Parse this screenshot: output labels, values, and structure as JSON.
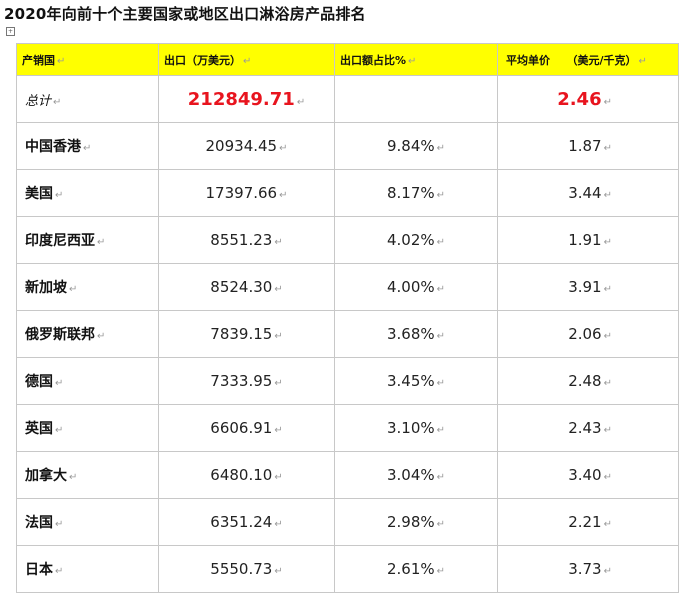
{
  "title": "2020年向前十个主要国家或地区出口淋浴房产品排名",
  "paragraph_mark": "↵",
  "table": {
    "headers": {
      "country": "产销国",
      "exports": "出口（万美元）",
      "share": "出口额占比%",
      "price": "平均单价　　（美元/千克）"
    },
    "total": {
      "label": "总计",
      "exports": "212849.71",
      "share": "",
      "price": "2.46"
    },
    "rows": [
      {
        "country": "中国香港",
        "exports": "20934.45",
        "share": "9.84%",
        "price": "1.87"
      },
      {
        "country": "美国",
        "exports": "17397.66",
        "share": "8.17%",
        "price": "3.44"
      },
      {
        "country": "印度尼西亚",
        "exports": "8551.23",
        "share": "4.02%",
        "price": "1.91"
      },
      {
        "country": "新加坡",
        "exports": "8524.30",
        "share": "4.00%",
        "price": "3.91"
      },
      {
        "country": "俄罗斯联邦",
        "exports": "7839.15",
        "share": "3.68%",
        "price": "2.06"
      },
      {
        "country": "德国",
        "exports": "7333.95",
        "share": "3.45%",
        "price": "2.48"
      },
      {
        "country": "英国",
        "exports": "6606.91",
        "share": "3.10%",
        "price": "2.43"
      },
      {
        "country": "加拿大",
        "exports": "6480.10",
        "share": "3.04%",
        "price": "3.40"
      },
      {
        "country": "法国",
        "exports": "6351.24",
        "share": "2.98%",
        "price": "2.21"
      },
      {
        "country": "日本",
        "exports": "5550.73",
        "share": "2.61%",
        "price": "3.73"
      }
    ]
  },
  "colors": {
    "header_bg": "#ffff00",
    "total_highlight": "#e8141e",
    "border": "#c8c8c8",
    "paragraph_mark": "#9a9a9a"
  }
}
